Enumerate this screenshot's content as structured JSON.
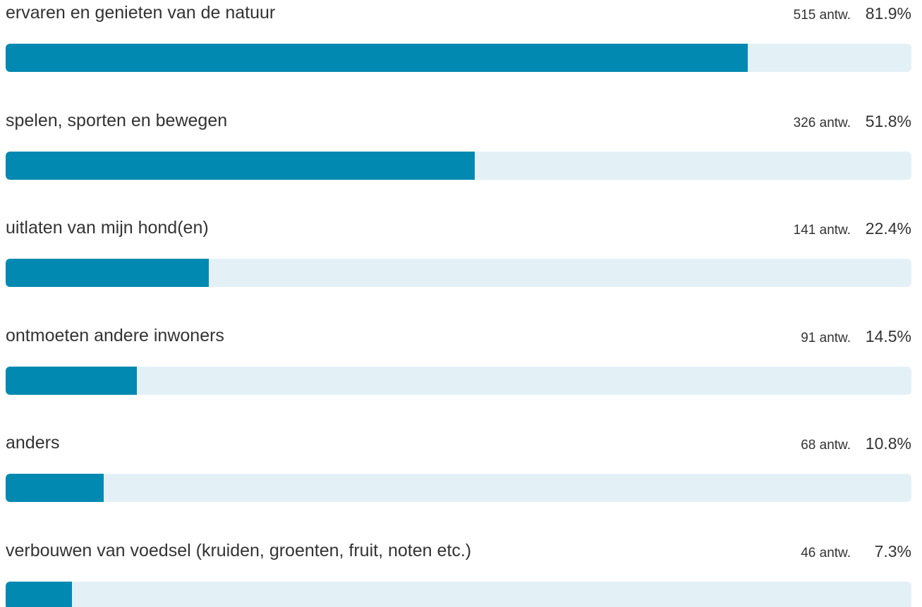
{
  "colors": {
    "bar_fill": "#0189b1",
    "bar_track": "#e3f1f7",
    "text": "#333333"
  },
  "chart_data": {
    "type": "bar",
    "orientation": "horizontal",
    "categories": [
      "ervaren en genieten van de natuur",
      "spelen, sporten en bewegen",
      "uitlaten van mijn hond(en)",
      "ontmoeten andere inwoners",
      "anders",
      "verbouwen van voedsel (kruiden, groenten, fruit, noten etc.)"
    ],
    "values": [
      81.9,
      51.8,
      22.4,
      14.5,
      10.8,
      7.3
    ],
    "xlim": [
      0,
      100
    ],
    "count_labels": [
      "515 antw.",
      "326 antw.",
      "141 antw.",
      "91 antw.",
      "68 antw.",
      "46 antw."
    ],
    "percent_labels": [
      "81.9%",
      "51.8%",
      "22.4%",
      "14.5%",
      "10.8%",
      "7.3%"
    ],
    "grid": false
  }
}
